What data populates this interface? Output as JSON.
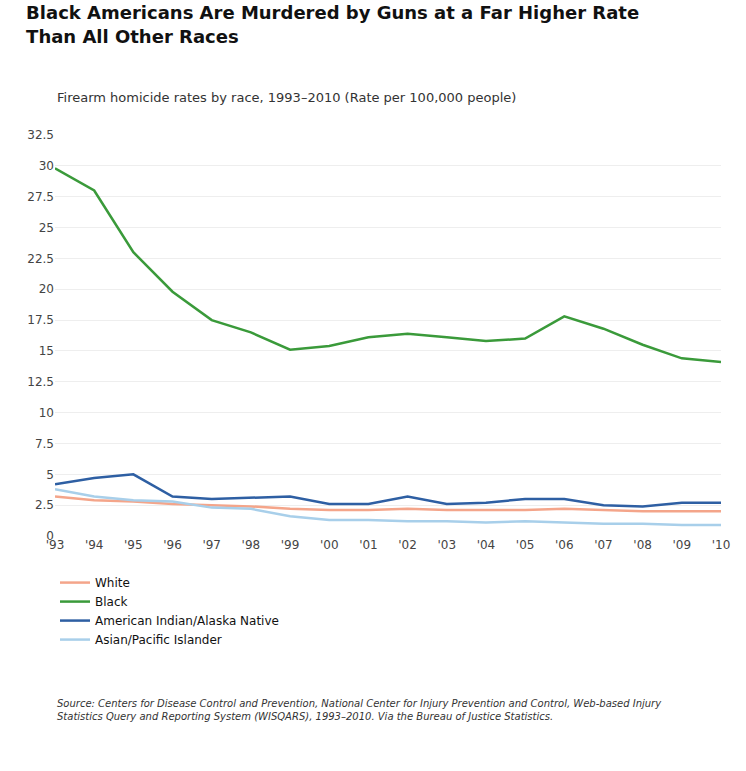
{
  "chart_data": {
    "type": "line",
    "title": "Black Americans Are Murdered by Guns at a Far Higher Rate\nThan All Other Races",
    "subtitle": "Firearm homicide rates by race, 1993–2010 (Rate per 100,000 people)",
    "x": [
      1993,
      1994,
      1995,
      1996,
      1997,
      1998,
      1999,
      2000,
      2001,
      2002,
      2003,
      2004,
      2005,
      2006,
      2007,
      2008,
      2009,
      2010
    ],
    "series": [
      {
        "name": "White",
        "color": "#f4a58a",
        "values": [
          3.2,
          2.9,
          2.8,
          2.6,
          2.5,
          2.4,
          2.2,
          2.1,
          2.1,
          2.2,
          2.1,
          2.1,
          2.1,
          2.2,
          2.1,
          2.0,
          2.0,
          2.0
        ]
      },
      {
        "name": "Black",
        "color": "#3a9a3a",
        "values": [
          29.8,
          28.0,
          23.0,
          19.8,
          17.5,
          16.5,
          15.1,
          15.4,
          16.1,
          16.4,
          16.1,
          15.8,
          16.0,
          17.8,
          16.8,
          15.5,
          14.4,
          14.1
        ]
      },
      {
        "name": "American Indian/Alaska Native",
        "color": "#2e5fa3",
        "values": [
          4.2,
          4.7,
          5.0,
          3.2,
          3.0,
          3.1,
          3.2,
          2.6,
          2.6,
          3.2,
          2.6,
          2.7,
          3.0,
          3.0,
          2.5,
          2.4,
          2.7,
          2.7
        ]
      },
      {
        "name": "Asian/Pacific Islander",
        "color": "#a8cfea",
        "values": [
          3.8,
          3.2,
          2.9,
          2.8,
          2.3,
          2.2,
          1.6,
          1.3,
          1.3,
          1.2,
          1.2,
          1.1,
          1.2,
          1.1,
          1.0,
          1.0,
          0.9,
          0.9
        ]
      }
    ],
    "xlim": [
      1993,
      2010
    ],
    "xticks": [
      {
        "value": 1993,
        "label": "'93"
      },
      {
        "value": 1994,
        "label": "'94"
      },
      {
        "value": 1995,
        "label": "'95"
      },
      {
        "value": 1996,
        "label": "'96"
      },
      {
        "value": 1997,
        "label": "'97"
      },
      {
        "value": 1998,
        "label": "'98"
      },
      {
        "value": 1999,
        "label": "'99"
      },
      {
        "value": 2000,
        "label": "'00"
      },
      {
        "value": 2001,
        "label": "'01"
      },
      {
        "value": 2002,
        "label": "'02"
      },
      {
        "value": 2003,
        "label": "'03"
      },
      {
        "value": 2004,
        "label": "'04"
      },
      {
        "value": 2005,
        "label": "'05"
      },
      {
        "value": 2006,
        "label": "'06"
      },
      {
        "value": 2007,
        "label": "'07"
      },
      {
        "value": 2008,
        "label": "'08"
      },
      {
        "value": 2009,
        "label": "'09"
      },
      {
        "value": 2010,
        "label": "'10"
      }
    ],
    "ylim": [
      0,
      32.5
    ],
    "yticks": [
      0,
      2.5,
      5,
      7.5,
      10,
      12.5,
      15,
      17.5,
      20,
      22.5,
      25,
      27.5,
      30,
      32.5
    ],
    "grid": true,
    "legend": "bottom",
    "annotations": [
      "Source: Centers for Disease Control and Prevention, National Center for Injury Prevention and Control, Web-based Injury\nStatistics Query and Reporting System (WISQARS), 1993–2010. Via the Bureau of Justice Statistics."
    ]
  }
}
